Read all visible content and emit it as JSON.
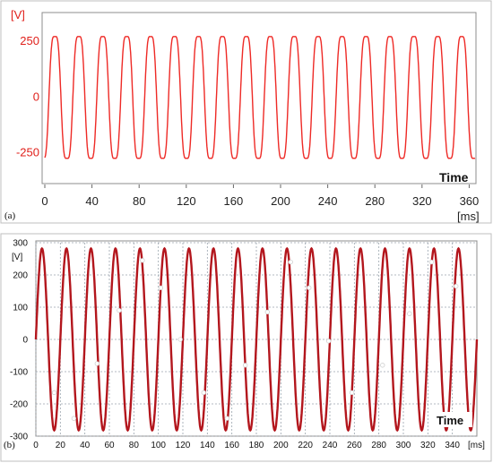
{
  "colors": {
    "panel_a_trace": "#ee2a26",
    "panel_b_trace": "#b3161d",
    "grid": "#9aa3ad"
  },
  "chart_data": [
    {
      "type": "line",
      "panel_label": "(a)",
      "ylabel": "[V]",
      "xlabel": "[ms]",
      "annotation": "Time",
      "xlim": [
        0,
        365
      ],
      "ylim": [
        -390,
        380
      ],
      "xticks": [
        "0",
        "40",
        "80",
        "120",
        "160",
        "200",
        "240",
        "280",
        "320",
        "360"
      ],
      "yticks": [
        "250",
        "0",
        "-250"
      ],
      "ytick_values": [
        250,
        0,
        -250
      ],
      "grid": false,
      "series": [
        {
          "amplitude_pos": 315,
          "amplitude_neg": -320,
          "period_ms": 20.3,
          "phase_ms": 3.5,
          "x_start": 0,
          "x_end": 365
        }
      ]
    },
    {
      "type": "line",
      "panel_label": "(b)",
      "ylabel": "[V]",
      "xlabel": "[ms]",
      "annotation": "Time",
      "xlim": [
        0,
        360
      ],
      "ylim": [
        -300,
        300
      ],
      "xticks": [
        "0",
        "20",
        "40",
        "60",
        "80",
        "100",
        "120",
        "140",
        "160",
        "180",
        "200",
        "220",
        "240",
        "260",
        "280",
        "300",
        "320",
        "340"
      ],
      "yticks": [
        "300",
        "200",
        "100",
        "0",
        "-100",
        "-200",
        "-300"
      ],
      "ytick_values": [
        300,
        200,
        100,
        0,
        -100,
        -200,
        -300
      ],
      "grid": true,
      "series": [
        {
          "amplitude": 282,
          "period_ms": 20.0,
          "phase_ms": 0,
          "x_start": 0,
          "x_end": 360
        }
      ],
      "markers": [
        {
          "x": 15,
          "y": -165
        },
        {
          "x": 31,
          "y": -245
        },
        {
          "x": 50,
          "y": -75
        },
        {
          "x": 68,
          "y": 90
        },
        {
          "x": 87,
          "y": 245
        },
        {
          "x": 102,
          "y": 160
        },
        {
          "x": 118,
          "y": 0
        },
        {
          "x": 137,
          "y": -165
        },
        {
          "x": 156,
          "y": -245
        },
        {
          "x": 171,
          "y": -80
        },
        {
          "x": 189,
          "y": 85
        },
        {
          "x": 208,
          "y": 240
        },
        {
          "x": 223,
          "y": 160
        },
        {
          "x": 239,
          "y": -5
        },
        {
          "x": 258,
          "y": -165
        },
        {
          "x": 283,
          "y": -80
        },
        {
          "x": 305,
          "y": 80
        },
        {
          "x": 323,
          "y": 240
        },
        {
          "x": 343,
          "y": 165
        }
      ]
    }
  ]
}
